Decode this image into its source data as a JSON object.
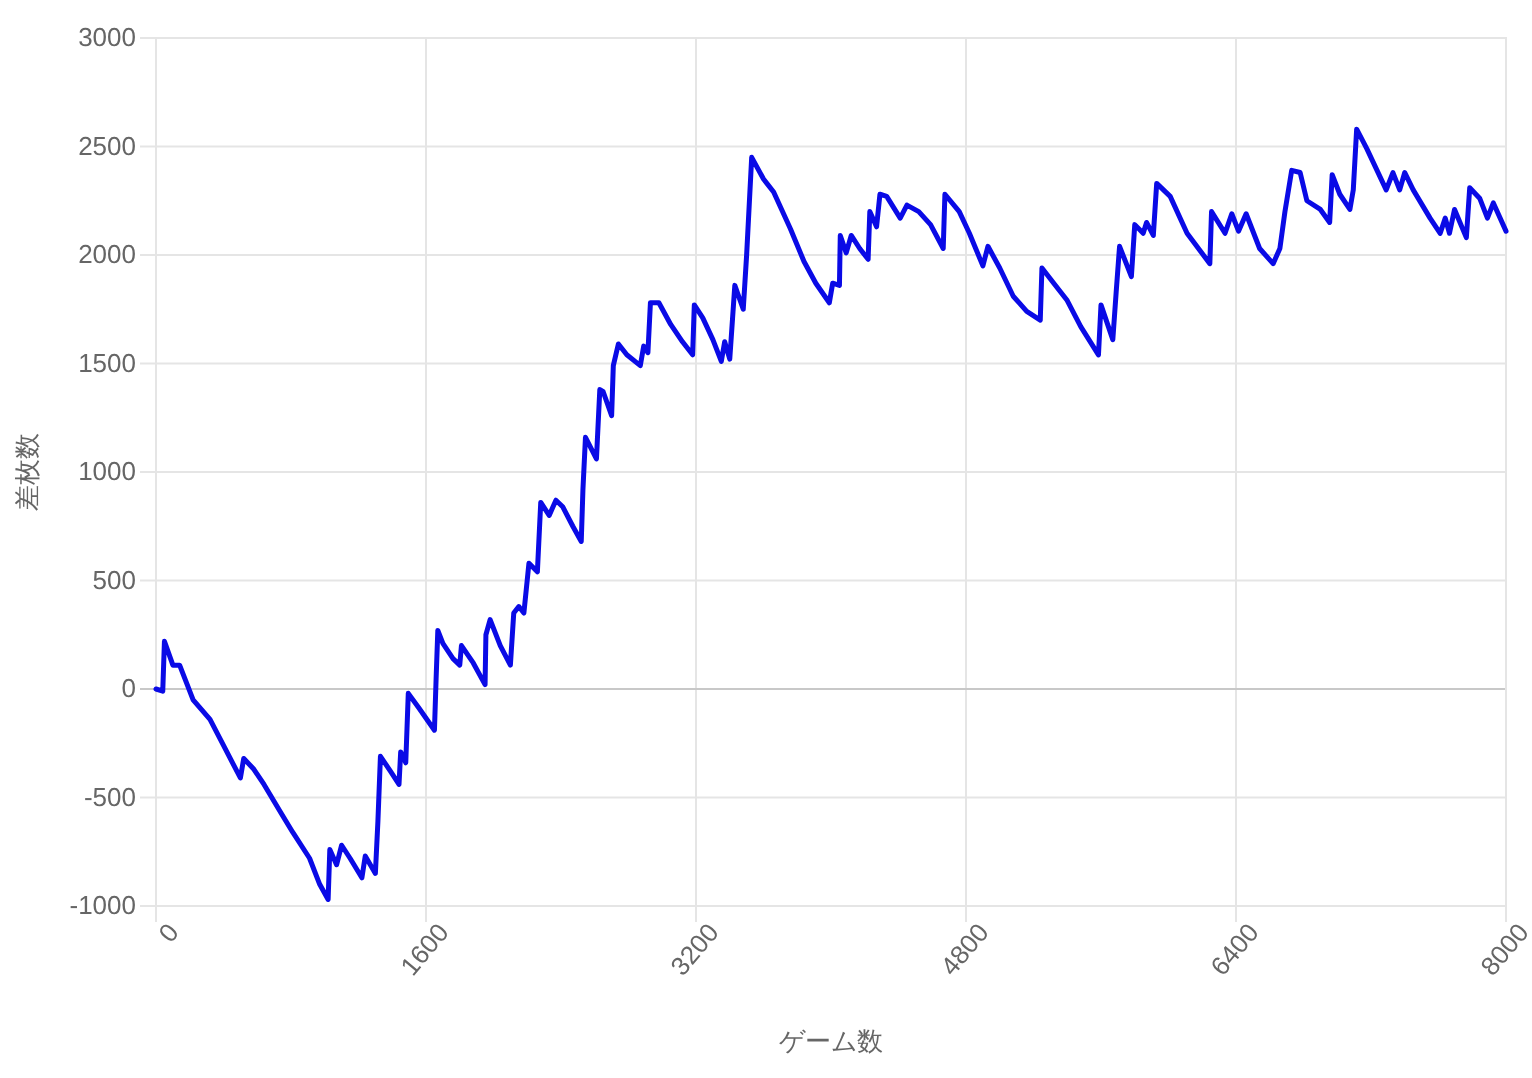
{
  "chart_data": {
    "type": "line",
    "xlabel": "ゲーム数",
    "ylabel": "差枚数",
    "xlim": [
      0,
      8000
    ],
    "xticks": [
      0,
      1600,
      3200,
      4800,
      6400,
      8000
    ],
    "ylim": [
      -1000,
      3000
    ],
    "yticks": [
      -1000,
      -500,
      0,
      500,
      1000,
      1500,
      2000,
      2500,
      3000
    ],
    "grid": true,
    "marker": "none",
    "line_style": "solid",
    "series": [
      {
        "color": "#0a0ae6",
        "x": [
          0,
          40,
          50,
          100,
          140,
          220,
          320,
          400,
          500,
          520,
          580,
          640,
          740,
          810,
          910,
          970,
          1020,
          1030,
          1070,
          1100,
          1150,
          1220,
          1240,
          1300,
          1315,
          1330,
          1390,
          1440,
          1450,
          1480,
          1495,
          1560,
          1650,
          1660,
          1670,
          1700,
          1760,
          1800,
          1810,
          1880,
          1950,
          1955,
          1980,
          2040,
          2100,
          2120,
          2150,
          2180,
          2210,
          2260,
          2280,
          2330,
          2370,
          2410,
          2470,
          2520,
          2530,
          2545,
          2610,
          2630,
          2650,
          2700,
          2710,
          2740,
          2790,
          2870,
          2890,
          2915,
          2930,
          2980,
          3050,
          3120,
          3180,
          3190,
          3240,
          3300,
          3350,
          3370,
          3400,
          3430,
          3480,
          3500,
          3530,
          3600,
          3660,
          3760,
          3840,
          3910,
          3990,
          4010,
          4050,
          4055,
          4090,
          4120,
          4170,
          4220,
          4230,
          4270,
          4290,
          4330,
          4410,
          4450,
          4520,
          4590,
          4665,
          4675,
          4760,
          4820,
          4900,
          4930,
          5000,
          5080,
          5160,
          5240,
          5250,
          5320,
          5400,
          5480,
          5585,
          5600,
          5670,
          5690,
          5710,
          5780,
          5800,
          5850,
          5870,
          5910,
          5930,
          6010,
          6110,
          6245,
          6255,
          6335,
          6375,
          6415,
          6460,
          6540,
          6620,
          6660,
          6690,
          6730,
          6780,
          6820,
          6900,
          6955,
          6970,
          7015,
          7075,
          7095,
          7115,
          7175,
          7290,
          7330,
          7370,
          7400,
          7450,
          7550,
          7610,
          7640,
          7665,
          7695,
          7765,
          7785,
          7845,
          7890,
          7925,
          8000
        ],
        "values": [
          0,
          -10,
          220,
          110,
          110,
          -50,
          -140,
          -260,
          -410,
          -320,
          -370,
          -440,
          -570,
          -660,
          -780,
          -900,
          -970,
          -740,
          -810,
          -720,
          -780,
          -870,
          -770,
          -850,
          -610,
          -310,
          -380,
          -440,
          -290,
          -340,
          -20,
          -90,
          -190,
          50,
          270,
          210,
          140,
          110,
          200,
          120,
          20,
          250,
          320,
          200,
          110,
          350,
          380,
          350,
          580,
          540,
          860,
          800,
          870,
          840,
          750,
          680,
          920,
          1160,
          1060,
          1380,
          1370,
          1260,
          1490,
          1590,
          1540,
          1490,
          1580,
          1550,
          1780,
          1780,
          1680,
          1600,
          1540,
          1770,
          1710,
          1610,
          1510,
          1600,
          1520,
          1860,
          1750,
          2000,
          2450,
          2350,
          2290,
          2120,
          1970,
          1870,
          1780,
          1870,
          1860,
          2090,
          2010,
          2090,
          2030,
          1980,
          2200,
          2130,
          2280,
          2270,
          2170,
          2230,
          2200,
          2140,
          2030,
          2280,
          2200,
          2100,
          1950,
          2040,
          1940,
          1810,
          1740,
          1700,
          1940,
          1870,
          1790,
          1670,
          1540,
          1770,
          1610,
          1830,
          2040,
          1900,
          2140,
          2100,
          2150,
          2090,
          2330,
          2270,
          2100,
          1960,
          2200,
          2100,
          2190,
          2110,
          2190,
          2030,
          1960,
          2030,
          2200,
          2390,
          2380,
          2250,
          2210,
          2150,
          2370,
          2280,
          2210,
          2300,
          2580,
          2490,
          2300,
          2380,
          2300,
          2380,
          2300,
          2170,
          2100,
          2170,
          2100,
          2210,
          2080,
          2310,
          2260,
          2170,
          2240,
          2110
        ]
      }
    ]
  }
}
